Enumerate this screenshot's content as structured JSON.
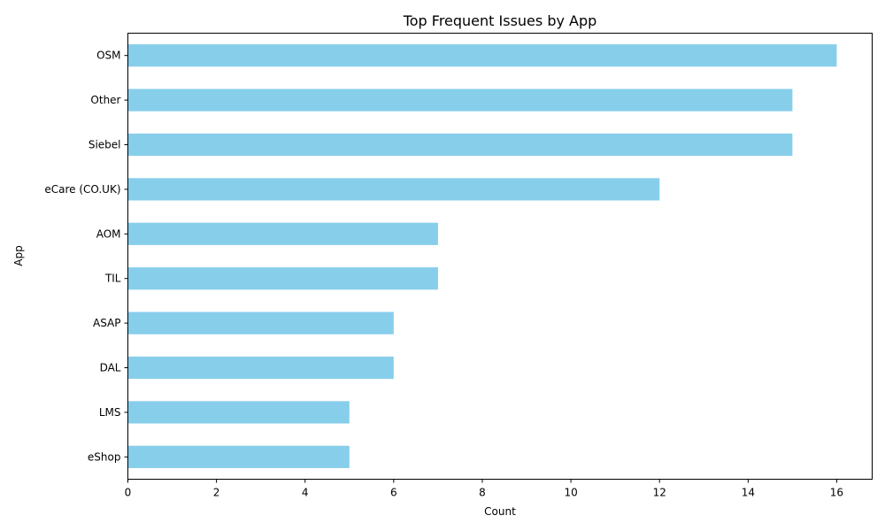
{
  "chart_data": {
    "type": "bar",
    "orientation": "horizontal",
    "title": "Top Frequent Issues by App",
    "xlabel": "Count",
    "ylabel": "App",
    "categories": [
      "OSM",
      "Other",
      "Siebel",
      "eCare (CO.UK)",
      "AOM",
      "TIL",
      "ASAP",
      "DAL",
      "LMS",
      "eShop"
    ],
    "values": [
      16,
      15,
      15,
      12,
      7,
      7,
      6,
      6,
      5,
      5
    ],
    "xlim": [
      0,
      16.8
    ],
    "xticks": [
      0,
      2,
      4,
      6,
      8,
      10,
      12,
      14,
      16
    ],
    "bar_color": "#87CEEB",
    "grid": false,
    "legend": "none"
  }
}
